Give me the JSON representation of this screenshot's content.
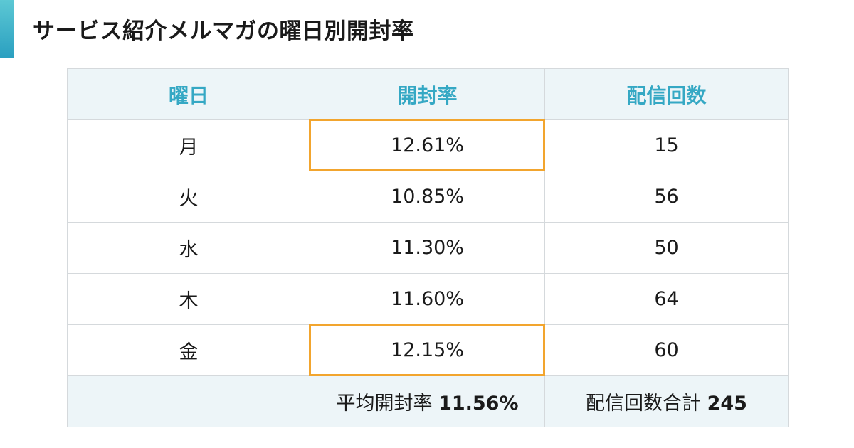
{
  "title": "サービス紹介メルマガの曜日別開封率",
  "colors": {
    "accent": "#35a8c4",
    "header_bg": "#edf5f8",
    "highlight": "#f2a52e",
    "border": "#d5d9dc"
  },
  "table": {
    "headers": [
      "曜日",
      "開封率",
      "配信回数"
    ],
    "rows": [
      {
        "day": "月",
        "rate": "12.61%",
        "count": "15",
        "highlighted": true
      },
      {
        "day": "火",
        "rate": "10.85%",
        "count": "56",
        "highlighted": false
      },
      {
        "day": "水",
        "rate": "11.30%",
        "count": "50",
        "highlighted": false
      },
      {
        "day": "木",
        "rate": "11.60%",
        "count": "64",
        "highlighted": false
      },
      {
        "day": "金",
        "rate": "12.15%",
        "count": "60",
        "highlighted": true
      }
    ],
    "footer": {
      "avg_label": "平均開封率",
      "avg_value": "11.56%",
      "total_label": "配信回数合計",
      "total_value": "245"
    }
  }
}
